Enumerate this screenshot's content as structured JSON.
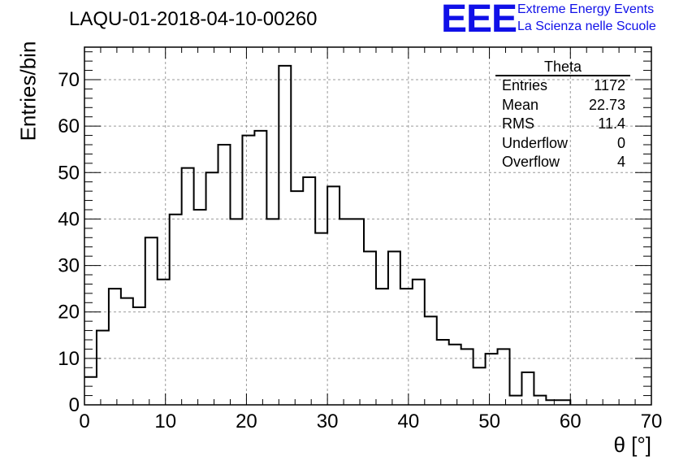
{
  "header": {
    "title": "LAQU-01-2018-04-10-00260",
    "logo_text": "EEE",
    "logo_line1": "Extreme Energy Events",
    "logo_line2": "La Scienza nelle Scuole"
  },
  "stats": {
    "name": "Theta",
    "rows": [
      {
        "label": "Entries",
        "value": "1172"
      },
      {
        "label": "Mean",
        "value": "22.73"
      },
      {
        "label": "RMS",
        "value": "11.4"
      },
      {
        "label": "Underflow",
        "value": "0"
      },
      {
        "label": "Overflow",
        "value": "4"
      }
    ]
  },
  "colors": {
    "logo": "#1010e8",
    "line": "#000000",
    "grid": "#9a9a9a"
  },
  "chart_data": {
    "type": "histogram",
    "title": "LAQU-01-2018-04-10-00260",
    "xlabel": "θ [°]",
    "ylabel": "Entries/bin",
    "xlim": [
      0,
      70
    ],
    "ylim": [
      0,
      77
    ],
    "grid": true,
    "bin_width": 1.5,
    "bin_start": 0,
    "x_ticks": [
      0,
      10,
      20,
      30,
      40,
      50,
      60,
      70
    ],
    "y_ticks": [
      0,
      10,
      20,
      30,
      40,
      50,
      60,
      70
    ],
    "values": [
      6,
      16,
      25,
      23,
      21,
      36,
      27,
      41,
      51,
      42,
      50,
      56,
      40,
      58,
      59,
      40,
      73,
      46,
      49,
      37,
      47,
      40,
      40,
      33,
      25,
      33,
      25,
      27,
      19,
      14,
      13,
      12,
      8,
      11,
      12,
      2,
      7,
      2,
      1,
      1,
      0,
      0,
      0,
      0,
      0,
      0
    ]
  }
}
